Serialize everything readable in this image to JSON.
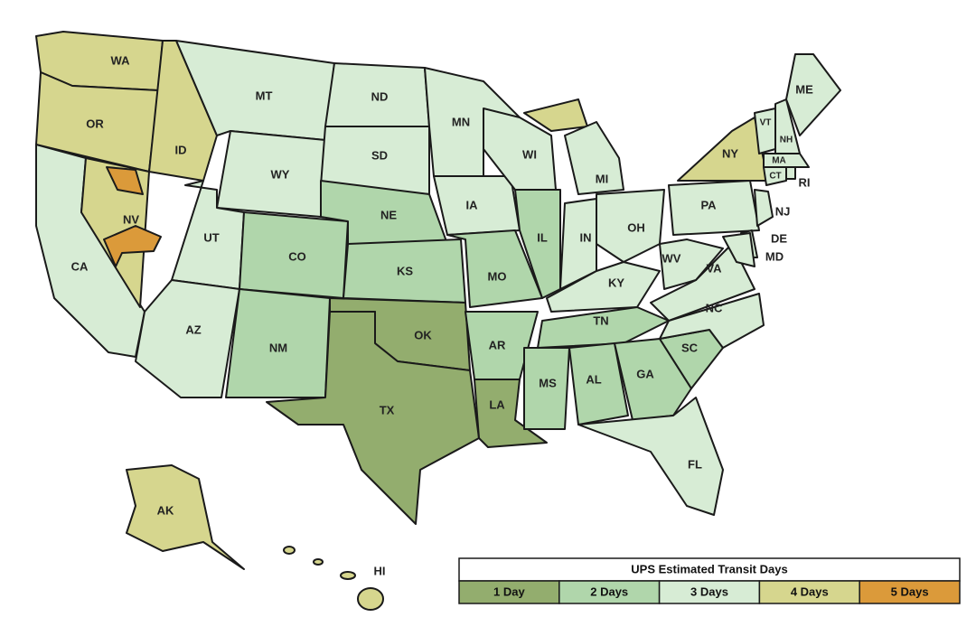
{
  "states": [
    "WA",
    "OR",
    "CA",
    "NV",
    "ID",
    "MT",
    "WY",
    "UT",
    "AZ",
    "CO",
    "NM",
    "ND",
    "SD",
    "NE",
    "KS",
    "OK",
    "TX",
    "MN",
    "IA",
    "MO",
    "AR",
    "LA",
    "WI",
    "IL",
    "MI",
    "IN",
    "OH",
    "KY",
    "TN",
    "MS",
    "AL",
    "GA",
    "FL",
    "SC",
    "NC",
    "VA",
    "WV",
    "PA",
    "NY",
    "VT",
    "NH",
    "ME",
    "MA",
    "CT",
    "RI",
    "NJ",
    "DE",
    "MD",
    "AK",
    "HI"
  ],
  "legend": {
    "title": "UPS Estimated Transit Days",
    "items": [
      {
        "label": "1 Day",
        "color": "#93ad6e"
      },
      {
        "label": "2 Days",
        "color": "#b0d6ab"
      },
      {
        "label": "3 Days",
        "color": "#d7ecd5"
      },
      {
        "label": "4 Days",
        "color": "#d6d68e"
      },
      {
        "label": "5 Days",
        "color": "#db9a3a"
      }
    ]
  }
}
